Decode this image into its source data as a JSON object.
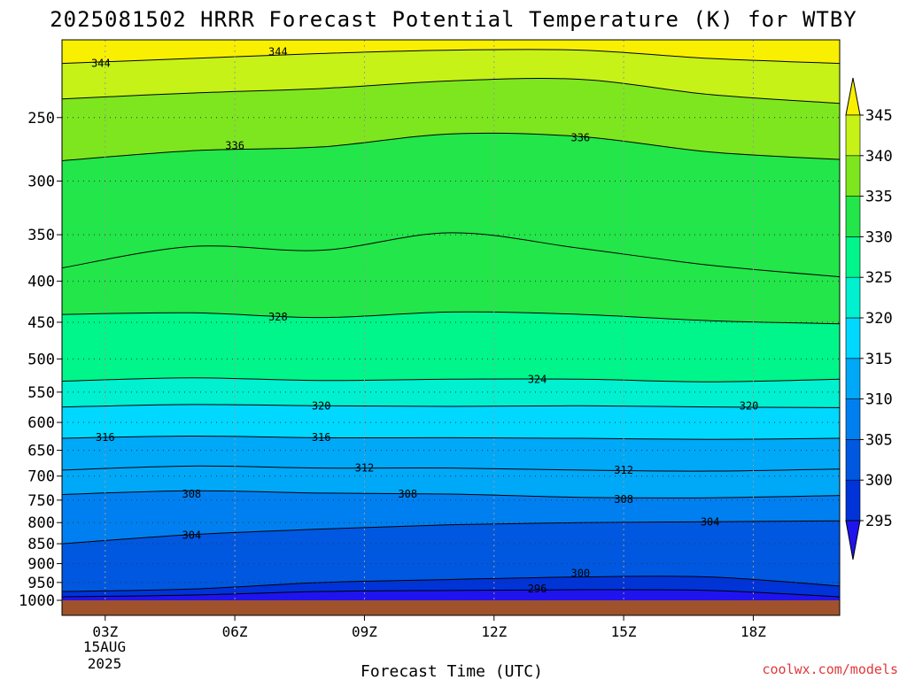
{
  "chart_data": {
    "type": "heatmap",
    "title": "2025081502 HRRR Forecast Potential Temperature (K) for WTBY",
    "xlabel": "Forecast Time (UTC)",
    "ylabel": "",
    "x_ticks": [
      "03Z",
      "06Z",
      "09Z",
      "12Z",
      "15Z",
      "18Z"
    ],
    "x_date_label": "15AUG",
    "x_year_label": "2025",
    "x_range_hours": [
      2,
      20
    ],
    "y_ticks": [
      250,
      300,
      350,
      400,
      450,
      500,
      550,
      600,
      650,
      700,
      750,
      800,
      850,
      900,
      950,
      1000
    ],
    "y_scale": "log",
    "ylim": [
      1000,
      200
    ],
    "colorbar": {
      "levels": [
        295,
        300,
        305,
        310,
        315,
        320,
        325,
        330,
        335,
        340,
        345
      ],
      "tick_labels": [
        "295",
        "300",
        "305",
        "310",
        "315",
        "320",
        "325",
        "330",
        "335",
        "340",
        "345"
      ],
      "colors": [
        "#1f14ee",
        "#0034d8",
        "#0058e0",
        "#0080f0",
        "#00a8f8",
        "#00d8ff",
        "#00f0d0",
        "#00f58a",
        "#22e64a",
        "#7ee61e",
        "#c6f218",
        "#f8f000"
      ],
      "extend": "both"
    },
    "contour_labels": [
      {
        "value": "344",
        "x_hour": 2.9,
        "p": 214
      },
      {
        "value": "344",
        "x_hour": 7.0,
        "p": 207
      },
      {
        "value": "336",
        "x_hour": 6.0,
        "p": 271
      },
      {
        "value": "336",
        "x_hour": 14.0,
        "p": 265
      },
      {
        "value": "328",
        "x_hour": 7.0,
        "p": 443
      },
      {
        "value": "324",
        "x_hour": 13.0,
        "p": 530
      },
      {
        "value": "320",
        "x_hour": 8.0,
        "p": 572
      },
      {
        "value": "320",
        "x_hour": 17.9,
        "p": 572
      },
      {
        "value": "316",
        "x_hour": 3.0,
        "p": 626
      },
      {
        "value": "316",
        "x_hour": 8.0,
        "p": 626
      },
      {
        "value": "312",
        "x_hour": 9.0,
        "p": 684
      },
      {
        "value": "312",
        "x_hour": 15.0,
        "p": 688
      },
      {
        "value": "308",
        "x_hour": 5.0,
        "p": 737
      },
      {
        "value": "308",
        "x_hour": 10.0,
        "p": 737
      },
      {
        "value": "308",
        "x_hour": 15.0,
        "p": 748
      },
      {
        "value": "304",
        "x_hour": 5.0,
        "p": 830
      },
      {
        "value": "304",
        "x_hour": 17.0,
        "p": 799
      },
      {
        "value": "300",
        "x_hour": 14.0,
        "p": 925
      },
      {
        "value": "296",
        "x_hour": 13.0,
        "p": 968
      }
    ],
    "isentropes": [
      {
        "theta": 296,
        "p": [
          990,
          985,
          975,
          972,
          970,
          972,
          990
        ]
      },
      {
        "theta": 300,
        "p": [
          975,
          968,
          950,
          942,
          935,
          935,
          960
        ]
      },
      {
        "theta": 304,
        "p": [
          850,
          828,
          815,
          805,
          800,
          798,
          796
        ]
      },
      {
        "theta": 308,
        "p": [
          738,
          730,
          735,
          737,
          744,
          745,
          740
        ]
      },
      {
        "theta": 312,
        "p": [
          688,
          680,
          684,
          684,
          688,
          690,
          686
        ]
      },
      {
        "theta": 316,
        "p": [
          628,
          624,
          627,
          627,
          628,
          630,
          628
        ]
      },
      {
        "theta": 320,
        "p": [
          574,
          570,
          572,
          573,
          572,
          574,
          575
        ]
      },
      {
        "theta": 324,
        "p": [
          533,
          528,
          532,
          530,
          530,
          534,
          530
        ]
      },
      {
        "theta": 328,
        "p": [
          440,
          438,
          444,
          437,
          440,
          448,
          452
        ]
      },
      {
        "theta": 332,
        "p": [
          385,
          362,
          366,
          348,
          364,
          382,
          395
        ]
      },
      {
        "theta": 336,
        "p": [
          283,
          275,
          272,
          262,
          264,
          276,
          282
        ]
      },
      {
        "theta": 340,
        "p": [
          237,
          233,
          230,
          225,
          224,
          234,
          240
        ]
      },
      {
        "theta": 344,
        "p": [
          214,
          211,
          208,
          206,
          206,
          211,
          214
        ]
      }
    ],
    "isentrope_x_hours": [
      2,
      5,
      8,
      11,
      14,
      17,
      20
    ],
    "terrain_pressure": 1000,
    "terrain_color": "#a0522d"
  },
  "credit": "coolwx.com/models"
}
